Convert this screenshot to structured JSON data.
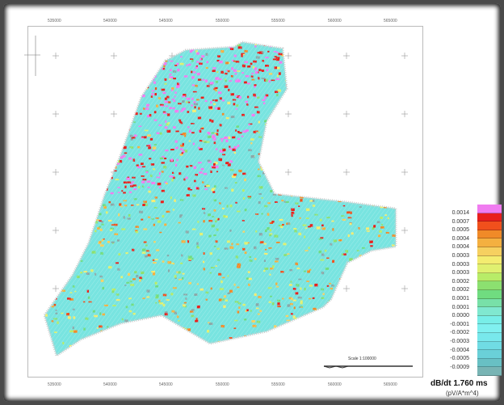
{
  "map": {
    "easting_labels_top": [
      "535000",
      "540000",
      "545000",
      "550000",
      "555000",
      "560000",
      "565000"
    ],
    "easting_labels_bottom": [
      "535000",
      "540000",
      "545000",
      "550000",
      "555000",
      "560000",
      "565000"
    ],
    "scale_label": "Scale 1:100000"
  },
  "legend": {
    "title": "dB/dt 1.760 ms",
    "unit": "(pV/A*m^4)",
    "labels": [
      "0.0014",
      "0.0007",
      "0.0005",
      "0.0004",
      "0.0004",
      "0.0003",
      "0.0003",
      "0.0003",
      "0.0002",
      "0.0002",
      "0.0001",
      "0.0001",
      "0.0000",
      "-0.0001",
      "-0.0002",
      "-0.0003",
      "-0.0004",
      "-0.0005",
      "-0.0009"
    ],
    "colors": [
      "#f07cf0",
      "#e8201c",
      "#f0501c",
      "#f08a28",
      "#f4b040",
      "#f6d060",
      "#f4ec70",
      "#e0f070",
      "#b8ec68",
      "#8ce070",
      "#70dc80",
      "#78e0a8",
      "#80e8d0",
      "#78eee8",
      "#80f0f0",
      "#78e8ec",
      "#70dce4",
      "#6ad0d8",
      "#68c0c4",
      "#78b4b4"
    ]
  },
  "colors": {
    "background_cyan": "#78e4e0",
    "high": "#e8201c",
    "max": "#f07cf0"
  }
}
